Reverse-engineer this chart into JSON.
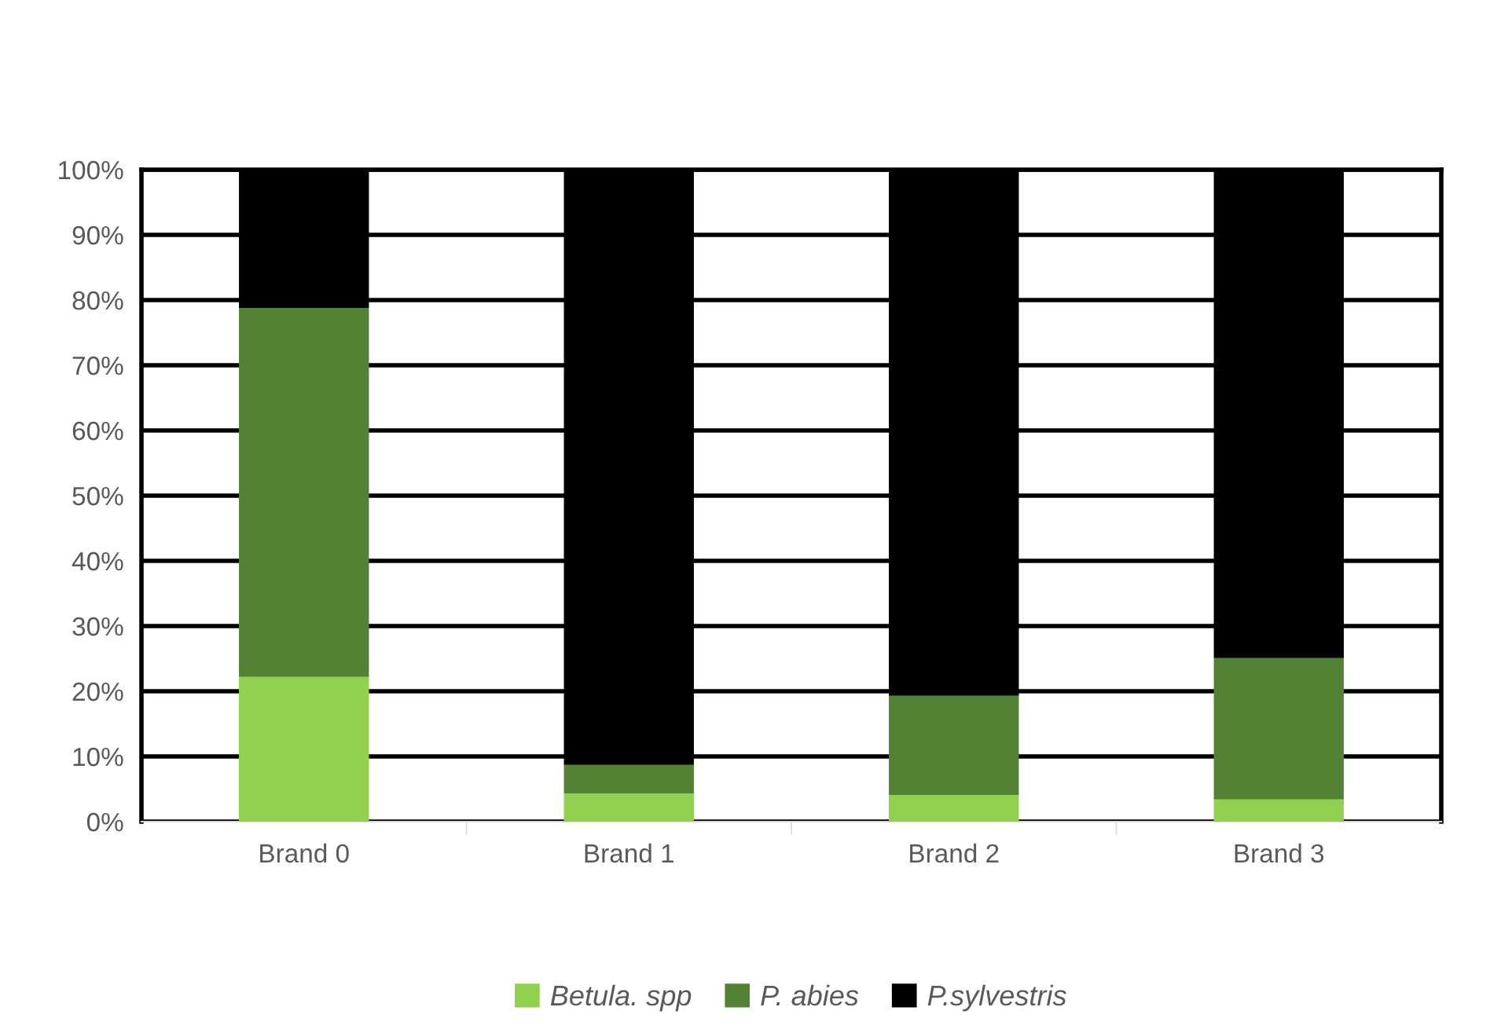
{
  "chart_data": {
    "type": "bar",
    "stacked": true,
    "categories": [
      "Brand 0",
      "Brand 1",
      "Brand 2",
      "Brand 3"
    ],
    "series": [
      {
        "name": "Betula. spp",
        "color": "#92d050",
        "values": [
          22.2,
          4.3,
          4.1,
          3.4
        ]
      },
      {
        "name": "P. abies",
        "color": "#548235",
        "values": [
          56.6,
          4.4,
          15.2,
          21.7
        ]
      },
      {
        "name": "P.sylvestris",
        "color": "#000000",
        "values": [
          21.2,
          91.3,
          80.7,
          74.9
        ]
      }
    ],
    "ylim": [
      0,
      100
    ],
    "yticks": [
      {
        "value": 0,
        "label": "0%"
      },
      {
        "value": 10,
        "label": "10%"
      },
      {
        "value": 20,
        "label": "20%"
      },
      {
        "value": 30,
        "label": "30%"
      },
      {
        "value": 40,
        "label": "40%"
      },
      {
        "value": 50,
        "label": "50%"
      },
      {
        "value": 60,
        "label": "60%"
      },
      {
        "value": 70,
        "label": "70%"
      },
      {
        "value": 80,
        "label": "80%"
      },
      {
        "value": 90,
        "label": "90%"
      },
      {
        "value": 100,
        "label": "100%"
      }
    ],
    "grid": "y",
    "legend": "bottom"
  }
}
